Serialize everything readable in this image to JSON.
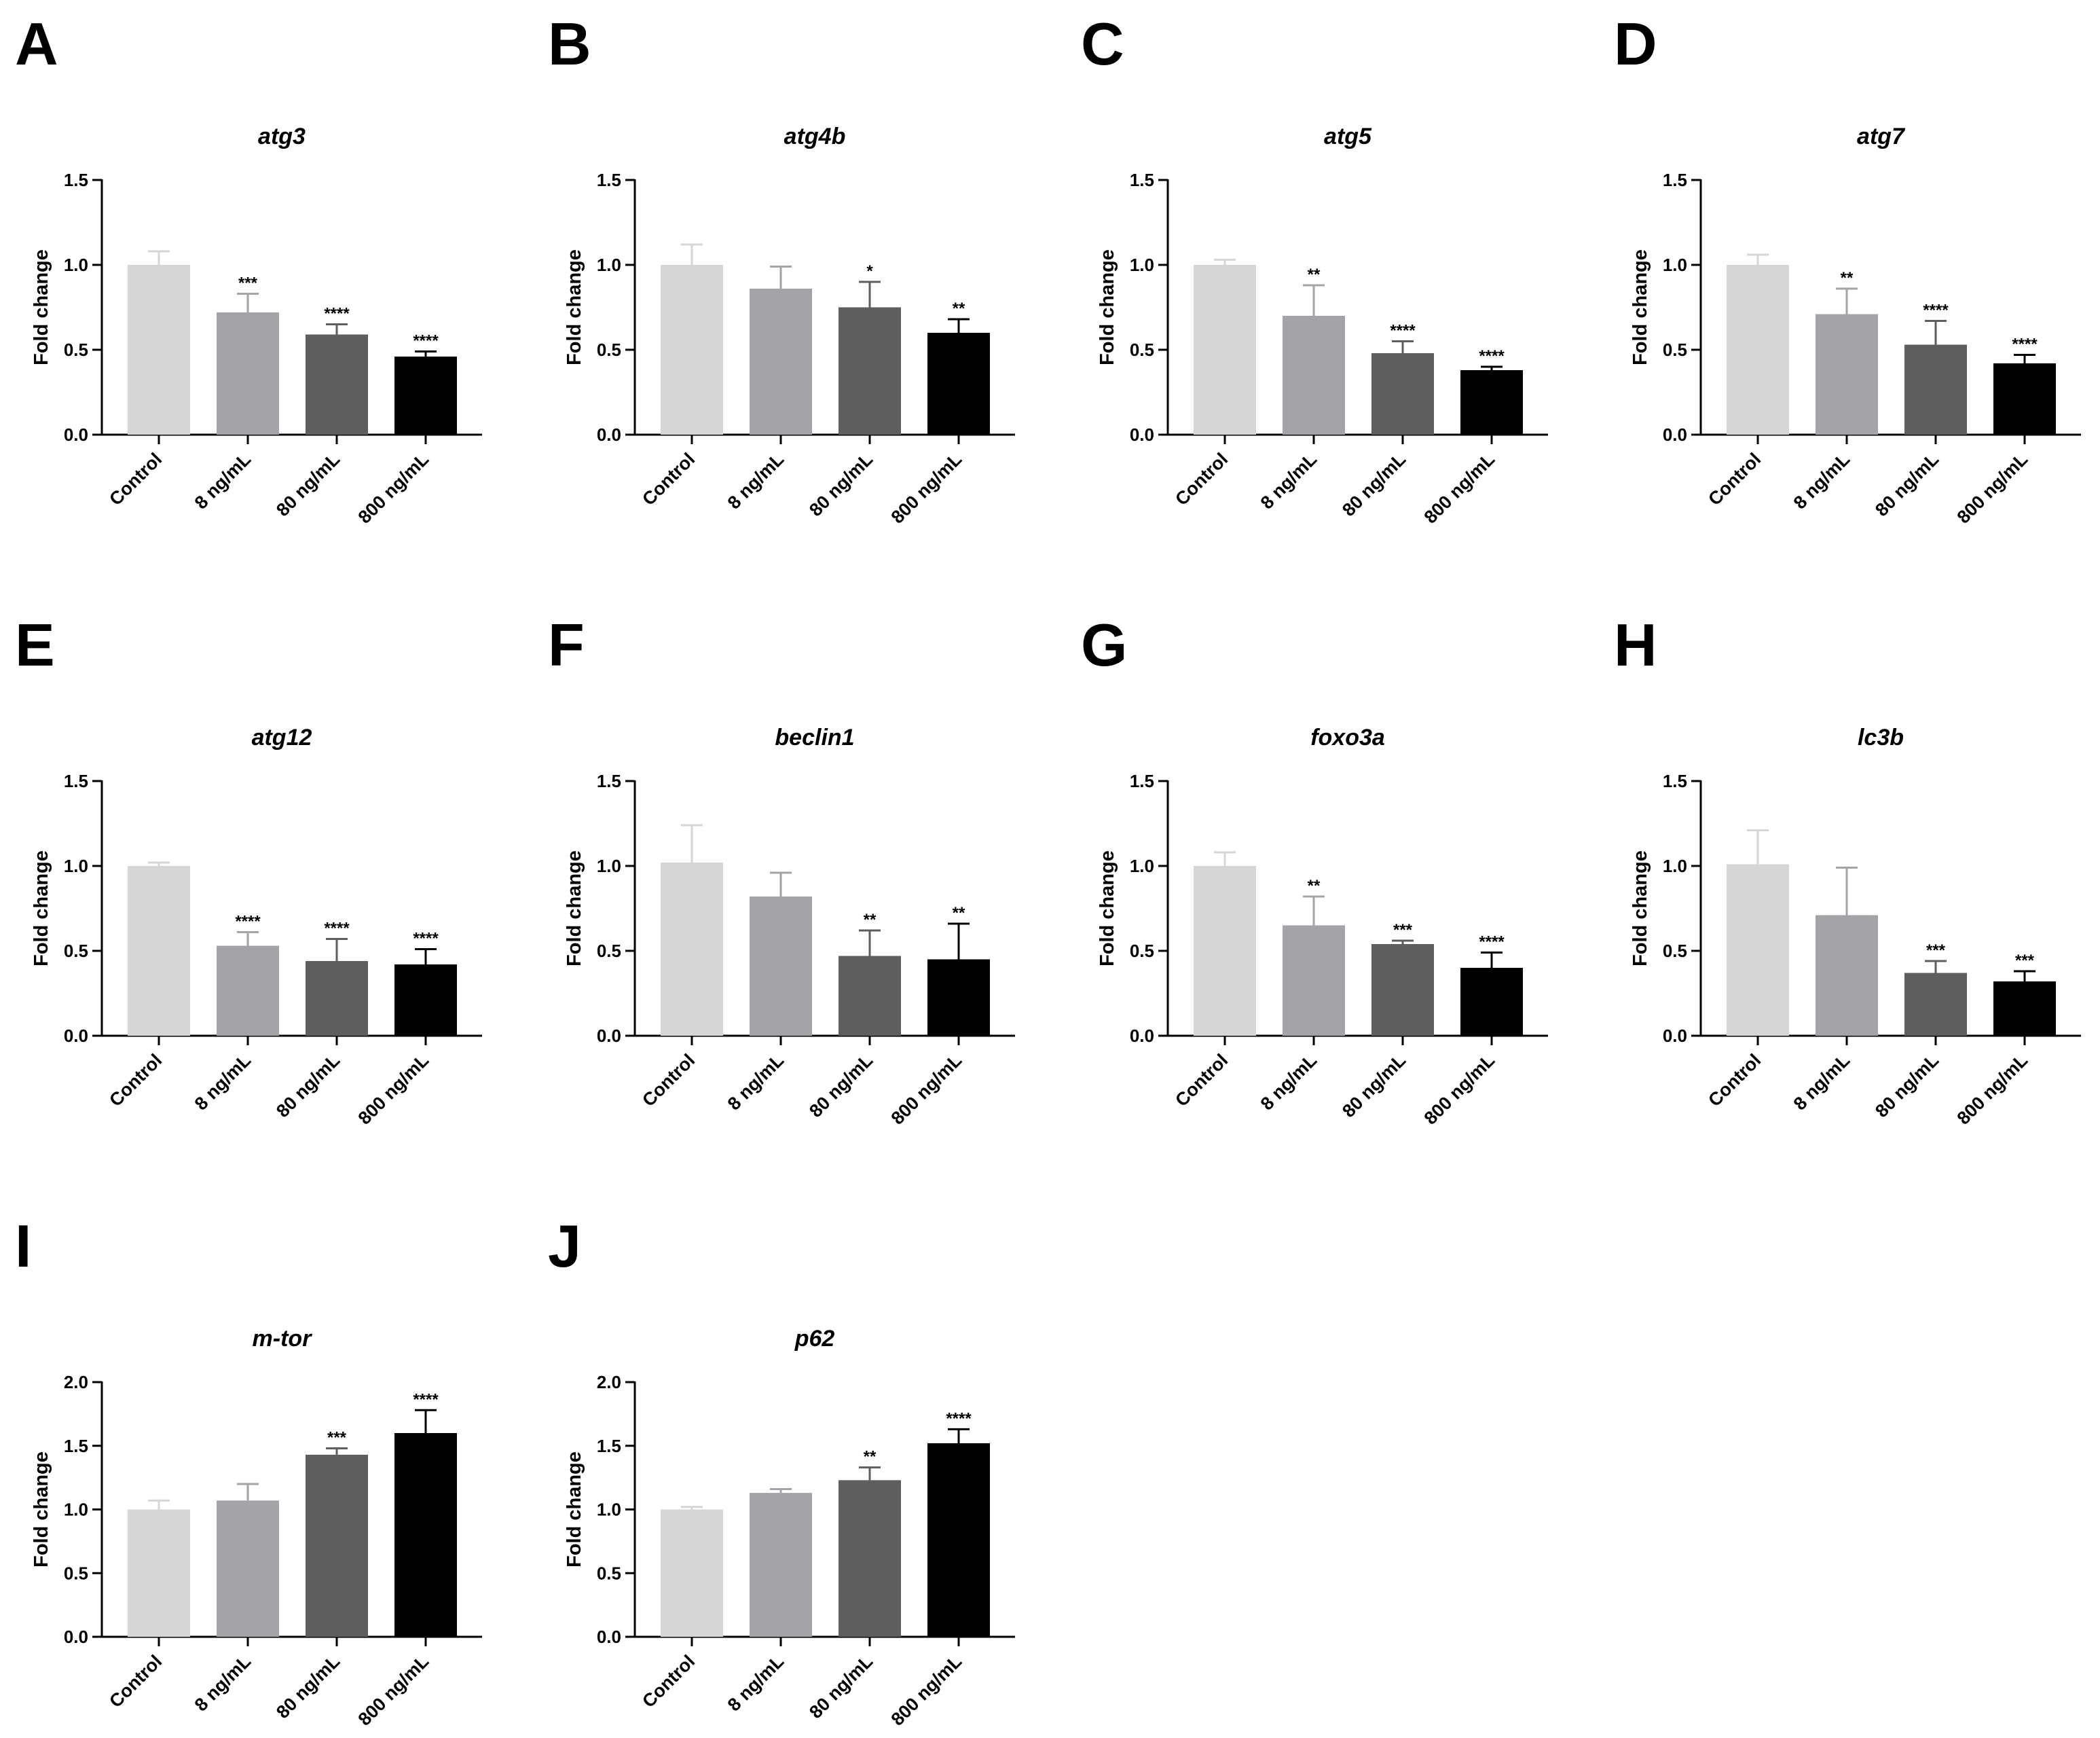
{
  "figure": {
    "bar_colors": [
      "#d6d6d6",
      "#a3a3a8",
      "#5e5e5e",
      "#000000"
    ],
    "axis_color": "#000000"
  },
  "chart_data": [
    {
      "panel": "A",
      "type": "bar",
      "title": "atg3",
      "xlabel": "",
      "ylabel": "Fold change",
      "categories": [
        "Control",
        "8 ng/mL",
        "80 ng/mL",
        "800 ng/mL"
      ],
      "values": [
        1.0,
        0.72,
        0.59,
        0.46
      ],
      "errors": [
        0.08,
        0.11,
        0.06,
        0.03
      ],
      "significance": [
        "",
        "***",
        "****",
        "****"
      ],
      "ylim": [
        0,
        1.5
      ],
      "yticks": [
        0.0,
        0.5,
        1.0,
        1.5
      ],
      "ytick_labels": [
        "0.0",
        "0.5",
        "1.0",
        "1.5"
      ]
    },
    {
      "panel": "B",
      "type": "bar",
      "title": "atg4b",
      "xlabel": "",
      "ylabel": "Fold change",
      "categories": [
        "Control",
        "8 ng/mL",
        "80 ng/mL",
        "800 ng/mL"
      ],
      "values": [
        1.0,
        0.86,
        0.75,
        0.6
      ],
      "errors": [
        0.12,
        0.13,
        0.15,
        0.08
      ],
      "significance": [
        "",
        "",
        "*",
        "**"
      ],
      "ylim": [
        0,
        1.5
      ],
      "yticks": [
        0.0,
        0.5,
        1.0,
        1.5
      ],
      "ytick_labels": [
        "0.0",
        "0.5",
        "1.0",
        "1.5"
      ]
    },
    {
      "panel": "C",
      "type": "bar",
      "title": "atg5",
      "xlabel": "",
      "ylabel": "Fold change",
      "categories": [
        "Control",
        "8 ng/mL",
        "80 ng/mL",
        "800 ng/mL"
      ],
      "values": [
        1.0,
        0.7,
        0.48,
        0.38
      ],
      "errors": [
        0.03,
        0.18,
        0.07,
        0.02
      ],
      "significance": [
        "",
        "**",
        "****",
        "****"
      ],
      "ylim": [
        0,
        1.5
      ],
      "yticks": [
        0.0,
        0.5,
        1.0,
        1.5
      ],
      "ytick_labels": [
        "0.0",
        "0.5",
        "1.0",
        "1.5"
      ]
    },
    {
      "panel": "D",
      "type": "bar",
      "title": "atg7",
      "xlabel": "",
      "ylabel": "Fold change",
      "categories": [
        "Control",
        "8 ng/mL",
        "80 ng/mL",
        "800 ng/mL"
      ],
      "values": [
        1.0,
        0.71,
        0.53,
        0.42
      ],
      "errors": [
        0.06,
        0.15,
        0.14,
        0.05
      ],
      "significance": [
        "",
        "**",
        "****",
        "****"
      ],
      "ylim": [
        0,
        1.5
      ],
      "yticks": [
        0.0,
        0.5,
        1.0,
        1.5
      ],
      "ytick_labels": [
        "0.0",
        "0.5",
        "1.0",
        "1.5"
      ]
    },
    {
      "panel": "E",
      "type": "bar",
      "title": "atg12",
      "xlabel": "",
      "ylabel": "Fold change",
      "categories": [
        "Control",
        "8 ng/mL",
        "80 ng/mL",
        "800 ng/mL"
      ],
      "values": [
        1.0,
        0.53,
        0.44,
        0.42
      ],
      "errors": [
        0.02,
        0.08,
        0.13,
        0.09
      ],
      "significance": [
        "",
        "****",
        "****",
        "****"
      ],
      "ylim": [
        0,
        1.5
      ],
      "yticks": [
        0.0,
        0.5,
        1.0,
        1.5
      ],
      "ytick_labels": [
        "0.0",
        "0.5",
        "1.0",
        "1.5"
      ]
    },
    {
      "panel": "F",
      "type": "bar",
      "title": "beclin1",
      "xlabel": "",
      "ylabel": "Fold change",
      "categories": [
        "Control",
        "8 ng/mL",
        "80 ng/mL",
        "800 ng/mL"
      ],
      "values": [
        1.02,
        0.82,
        0.47,
        0.45
      ],
      "errors": [
        0.22,
        0.14,
        0.15,
        0.21
      ],
      "significance": [
        "",
        "",
        "**",
        "**"
      ],
      "ylim": [
        0,
        1.5
      ],
      "yticks": [
        0.0,
        0.5,
        1.0,
        1.5
      ],
      "ytick_labels": [
        "0.0",
        "0.5",
        "1.0",
        "1.5"
      ]
    },
    {
      "panel": "G",
      "type": "bar",
      "title": "foxo3a",
      "xlabel": "",
      "ylabel": "Fold change",
      "categories": [
        "Control",
        "8 ng/mL",
        "80 ng/mL",
        "800 ng/mL"
      ],
      "values": [
        1.0,
        0.65,
        0.54,
        0.4
      ],
      "errors": [
        0.08,
        0.17,
        0.02,
        0.09
      ],
      "significance": [
        "",
        "**",
        "***",
        "****"
      ],
      "ylim": [
        0,
        1.5
      ],
      "yticks": [
        0.0,
        0.5,
        1.0,
        1.5
      ],
      "ytick_labels": [
        "0.0",
        "0.5",
        "1.0",
        "1.5"
      ]
    },
    {
      "panel": "H",
      "type": "bar",
      "title": "lc3b",
      "xlabel": "",
      "ylabel": "Fold change",
      "categories": [
        "Control",
        "8 ng/mL",
        "80 ng/mL",
        "800 ng/mL"
      ],
      "values": [
        1.01,
        0.71,
        0.37,
        0.32
      ],
      "errors": [
        0.2,
        0.28,
        0.07,
        0.06
      ],
      "significance": [
        "",
        "",
        "***",
        "***"
      ],
      "ylim": [
        0,
        1.5
      ],
      "yticks": [
        0.0,
        0.5,
        1.0,
        1.5
      ],
      "ytick_labels": [
        "0.0",
        "0.5",
        "1.0",
        "1.5"
      ]
    },
    {
      "panel": "I",
      "type": "bar",
      "title": "m-tor",
      "xlabel": "",
      "ylabel": "Fold change",
      "categories": [
        "Control",
        "8 ng/mL",
        "80 ng/mL",
        "800 ng/mL"
      ],
      "values": [
        1.0,
        1.07,
        1.43,
        1.6
      ],
      "errors": [
        0.07,
        0.13,
        0.05,
        0.18
      ],
      "significance": [
        "",
        "",
        "***",
        "****"
      ],
      "ylim": [
        0,
        2.0
      ],
      "yticks": [
        0.0,
        0.5,
        1.0,
        1.5,
        2.0
      ],
      "ytick_labels": [
        "0.0",
        "0.5",
        "1.0",
        "1.5",
        "2.0"
      ]
    },
    {
      "panel": "J",
      "type": "bar",
      "title": "p62",
      "xlabel": "",
      "ylabel": "Fold change",
      "categories": [
        "Control",
        "8 ng/mL",
        "80 ng/mL",
        "800 ng/mL"
      ],
      "values": [
        1.0,
        1.13,
        1.23,
        1.52
      ],
      "errors": [
        0.02,
        0.03,
        0.1,
        0.11
      ],
      "significance": [
        "",
        "",
        "**",
        "****"
      ],
      "ylim": [
        0,
        2.0
      ],
      "yticks": [
        0.0,
        0.5,
        1.0,
        1.5,
        2.0
      ],
      "ytick_labels": [
        "0.0",
        "0.5",
        "1.0",
        "1.5",
        "2.0"
      ]
    }
  ]
}
